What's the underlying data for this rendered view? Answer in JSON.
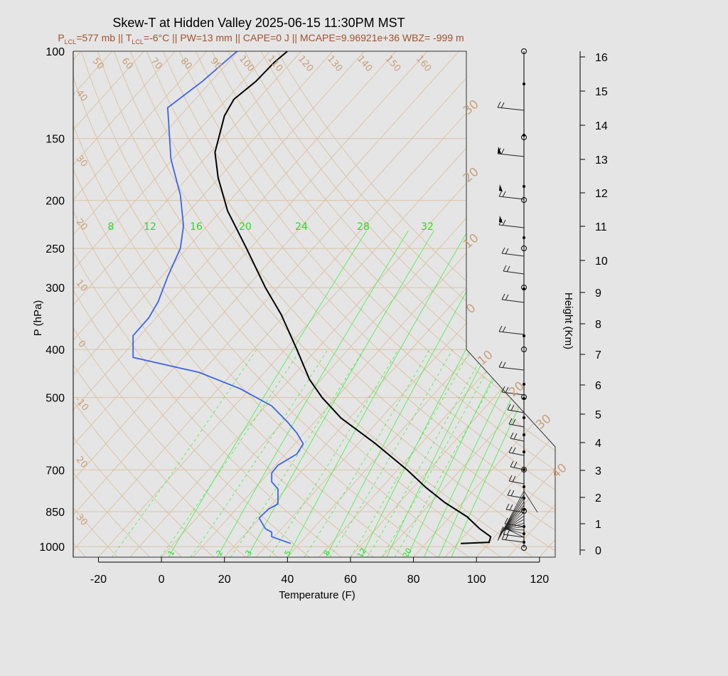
{
  "title": "Skew-T at Hidden Valley 2025-06-15 11:30PM MST",
  "subtitle": {
    "p_lcl": "P",
    "p_lcl_sub": "LCL",
    "p_lcl_val": "=577 mb || T",
    "t_lcl_sub": "LCL",
    "rest": "=-6°C || PW=13 mm || CAPE=0 J || MCAPE=9.96921e+36 WBZ= -999 m"
  },
  "colors": {
    "temperature": "#000000",
    "dewpoint": "#3c64e6",
    "isotherm": "#dcc3a5",
    "adiabat": "#dcc3a5",
    "mixing_ratio": "#44ee44",
    "label_brown": "#c8a078",
    "subtitle": "#a0522d"
  },
  "chart_data": {
    "type": "line",
    "title": "Skew-T at Hidden Valley 2025-06-15 11:30PM MST",
    "xlabel": "Temperature (F)",
    "ylabel": "P (hPa)",
    "y2label": "Height (Km)",
    "xlim": [
      -28,
      125
    ],
    "ylim": [
      1050,
      100
    ],
    "y_scale": "log",
    "x_ticks": [
      "-20",
      "0",
      "20",
      "40",
      "60",
      "80",
      "100",
      "120"
    ],
    "x_tick_values": [
      -20,
      0,
      20,
      40,
      60,
      80,
      100,
      120
    ],
    "y_ticks": [
      "100",
      "150",
      "200",
      "250",
      "300",
      "400",
      "500",
      "700",
      "850",
      "1000"
    ],
    "y_tick_values": [
      100,
      150,
      200,
      250,
      300,
      400,
      500,
      700,
      850,
      1000
    ],
    "height_ticks": [
      "0",
      "1",
      "2",
      "3",
      "4",
      "5",
      "6",
      "7",
      "8",
      "9",
      "10",
      "11",
      "12",
      "13",
      "14",
      "15",
      "16"
    ],
    "mixing_ratio_labels_top": [
      "8",
      "12",
      "16",
      "20",
      "24",
      "28",
      "32"
    ],
    "mixing_ratio_labels_bottom": [
      "1",
      "2",
      "3",
      "5",
      "8",
      "12",
      "20"
    ],
    "theta_labels": [
      "50",
      "60",
      "70",
      "80",
      "90",
      "100",
      "110",
      "120",
      "130",
      "140",
      "150",
      "160"
    ],
    "left_isotherm_labels": [
      "40",
      "30",
      "20",
      "10",
      "0",
      "-10",
      "20",
      "30"
    ],
    "right_isotherm_labels": [
      "30",
      "20",
      "10",
      "0",
      "10",
      "20",
      "30",
      "40"
    ],
    "series": [
      {
        "name": "Temperature",
        "x_pressure": [
          [
            95,
            985
          ],
          [
            104,
            980
          ],
          [
            104.5,
            955
          ],
          [
            101,
            920
          ],
          [
            97,
            870
          ],
          [
            90,
            815
          ],
          [
            84,
            760
          ],
          [
            78,
            700
          ],
          [
            68,
            620
          ],
          [
            57,
            550
          ],
          [
            51,
            500
          ],
          [
            47,
            460
          ],
          [
            43,
            400
          ],
          [
            38,
            340
          ],
          [
            33,
            300
          ],
          [
            27,
            250
          ],
          [
            21,
            210
          ],
          [
            18,
            180
          ],
          [
            17,
            160
          ],
          [
            20,
            135
          ],
          [
            23,
            125
          ],
          [
            30,
            115
          ],
          [
            36,
            105
          ],
          [
            40,
            100
          ]
        ]
      },
      {
        "name": "Dewpoint",
        "x_pressure": [
          [
            41,
            985
          ],
          [
            35,
            955
          ],
          [
            35,
            935
          ],
          [
            33,
            920
          ],
          [
            31,
            875
          ],
          [
            34,
            840
          ],
          [
            37,
            820
          ],
          [
            37,
            765
          ],
          [
            35,
            740
          ],
          [
            35,
            710
          ],
          [
            37,
            685
          ],
          [
            43,
            650
          ],
          [
            45,
            620
          ],
          [
            43,
            590
          ],
          [
            40,
            560
          ],
          [
            35,
            520
          ],
          [
            25,
            480
          ],
          [
            12,
            445
          ],
          [
            -9,
            415
          ],
          [
            -9,
            375
          ],
          [
            -4,
            345
          ],
          [
            -1,
            320
          ],
          [
            2,
            285
          ],
          [
            6,
            250
          ],
          [
            7,
            225
          ],
          [
            6,
            195
          ],
          [
            3,
            165
          ],
          [
            2,
            130
          ],
          [
            13,
            115
          ],
          [
            24,
            100
          ]
        ]
      }
    ]
  }
}
